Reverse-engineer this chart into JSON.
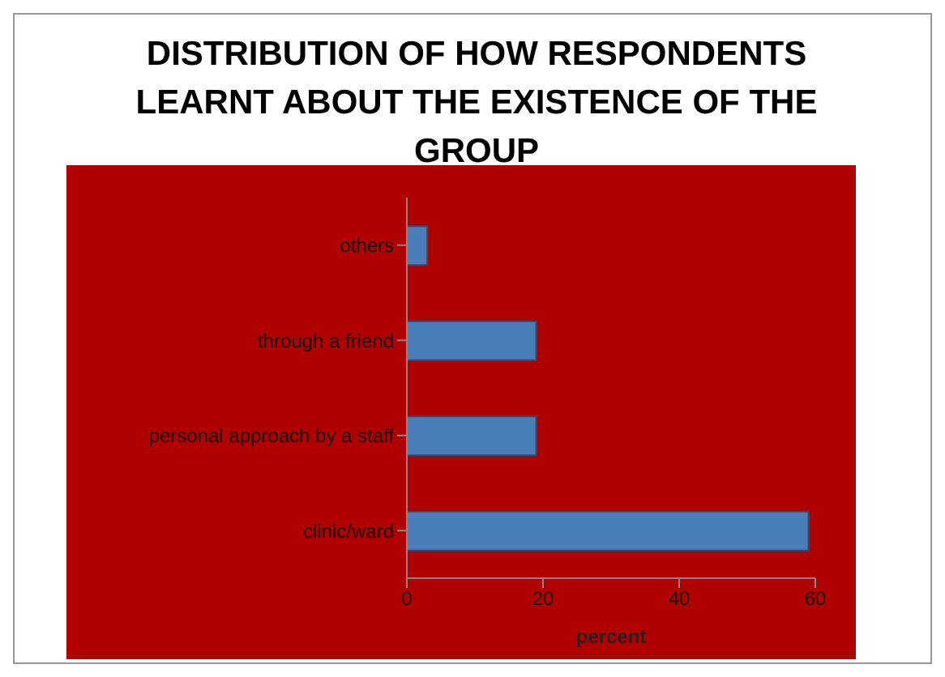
{
  "chart_data": {
    "type": "bar",
    "orientation": "horizontal",
    "title": "DISTRIBUTION OF HOW RESPONDENTS LEARNT ABOUT THE EXISTENCE OF THE GROUP",
    "xlabel": "percent",
    "categories": [
      "others",
      "through a friend",
      "personal approach by a staff",
      "clinic/ward"
    ],
    "values": [
      3,
      19,
      19,
      59
    ],
    "color": "#4a7ebb",
    "xlim": [
      0,
      60
    ],
    "xticks": [
      0,
      20,
      40,
      60
    ],
    "grid": false
  }
}
